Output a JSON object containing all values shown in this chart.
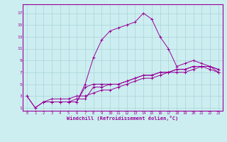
{
  "xlabel": "Windchill (Refroidissement éolien,°C)",
  "bg_color": "#cceef0",
  "line_color": "#990099",
  "grid_color": "#aad4d8",
  "x_ticks": [
    0,
    1,
    2,
    3,
    4,
    5,
    6,
    7,
    8,
    9,
    10,
    11,
    12,
    13,
    14,
    15,
    16,
    17,
    18,
    19,
    20,
    21,
    22,
    23
  ],
  "y_ticks": [
    1,
    3,
    5,
    7,
    9,
    11,
    13,
    15,
    17
  ],
  "xlim": [
    -0.5,
    23.5
  ],
  "ylim": [
    0.5,
    18.5
  ],
  "series": [
    {
      "x": [
        0,
        1,
        2,
        3,
        4,
        5,
        6,
        7,
        8,
        9,
        10,
        11,
        12,
        13,
        14,
        15,
        16,
        17,
        18,
        19,
        20,
        21,
        22,
        23
      ],
      "y": [
        3,
        1,
        2,
        2,
        2,
        2,
        2,
        5,
        9.5,
        12.5,
        14,
        14.5,
        15,
        15.5,
        17,
        16,
        13,
        11,
        8,
        8.5,
        9,
        8.5,
        8,
        7
      ]
    },
    {
      "x": [
        0,
        1,
        2,
        3,
        4,
        5,
        6,
        7,
        8,
        9,
        10,
        11,
        12,
        13,
        14,
        15,
        16,
        17,
        18,
        19,
        20,
        21,
        22,
        23
      ],
      "y": [
        3,
        1,
        2,
        2,
        2,
        2,
        2,
        4.5,
        5,
        5,
        5,
        5,
        5.5,
        6,
        6.5,
        6.5,
        7,
        7,
        7.5,
        7.5,
        8,
        8,
        8,
        7.5
      ]
    },
    {
      "x": [
        2,
        3,
        4,
        5,
        6,
        7,
        8,
        9,
        10,
        11,
        12,
        13,
        14,
        15,
        16,
        17,
        18,
        19,
        20,
        21,
        22,
        23
      ],
      "y": [
        2,
        2,
        2,
        2,
        2.5,
        2.5,
        4.5,
        4.5,
        5,
        5,
        5.5,
        6,
        6.5,
        6.5,
        7,
        7,
        7.5,
        7.5,
        8,
        8,
        8,
        7.5
      ]
    },
    {
      "x": [
        2,
        3,
        4,
        5,
        6,
        7,
        8,
        9,
        10,
        11,
        12,
        13,
        14,
        15,
        16,
        17,
        18,
        19,
        20,
        21,
        22,
        23
      ],
      "y": [
        2,
        2.5,
        2.5,
        2.5,
        3,
        3,
        3.5,
        4,
        4,
        4.5,
        5,
        5.5,
        6,
        6,
        6.5,
        7,
        7,
        7,
        7.5,
        8,
        7.5,
        7
      ]
    }
  ],
  "marker": "+"
}
